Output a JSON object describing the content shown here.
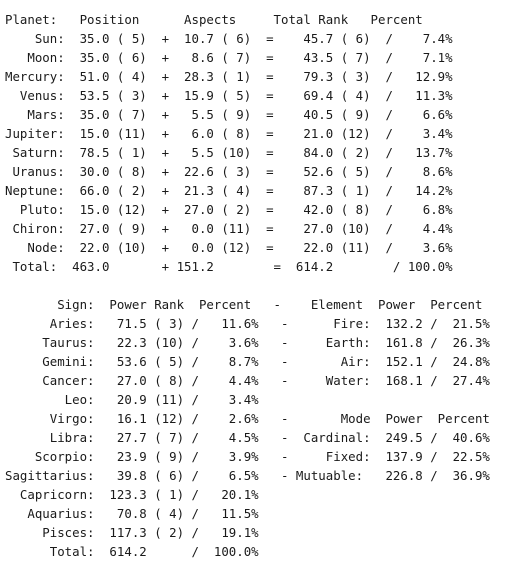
{
  "planets": {
    "header": "Planet:   Position      Aspects     Total Rank   Percent",
    "rows": [
      "    Sun:  35.0 ( 5)  +  10.7 ( 6)  =    45.7 ( 6)  /    7.4%",
      "   Moon:  35.0 ( 6)  +   8.6 ( 7)  =    43.5 ( 7)  /    7.1%",
      "Mercury:  51.0 ( 4)  +  28.3 ( 1)  =    79.3 ( 3)  /   12.9%",
      "  Venus:  53.5 ( 3)  +  15.9 ( 5)  =    69.4 ( 4)  /   11.3%",
      "   Mars:  35.0 ( 7)  +   5.5 ( 9)  =    40.5 ( 9)  /    6.6%",
      "Jupiter:  15.0 (11)  +   6.0 ( 8)  =    21.0 (12)  /    3.4%",
      " Saturn:  78.5 ( 1)  +   5.5 (10)  =    84.0 ( 2)  /   13.7%",
      " Uranus:  30.0 ( 8)  +  22.6 ( 3)  =    52.6 ( 5)  /    8.6%",
      "Neptune:  66.0 ( 2)  +  21.3 ( 4)  =    87.3 ( 1)  /   14.2%",
      "  Pluto:  15.0 (12)  +  27.0 ( 2)  =    42.0 ( 8)  /    6.8%",
      " Chiron:  27.0 ( 9)  +   0.0 (11)  =    27.0 (10)  /    4.4%",
      "   Node:  22.0 (10)  +   0.0 (12)  =    22.0 (11)  /    3.6%"
    ],
    "total": " Total:  463.0       + 151.2        =  614.2        / 100.0%"
  },
  "signs": {
    "header": "       Sign:  Power Rank  Percent   -    Element  Power  Percent",
    "rows": [
      "      Aries:   71.5 ( 3) /   11.6%   -      Fire:  132.2 /  21.5%",
      "     Taurus:   22.3 (10) /    3.6%   -     Earth:  161.8 /  26.3%",
      "     Gemini:   53.6 ( 5) /    8.7%   -       Air:  152.1 /  24.8%",
      "     Cancer:   27.0 ( 8) /    4.4%   -     Water:  168.1 /  27.4%",
      "        Leo:   20.9 (11) /    3.4%",
      "      Virgo:   16.1 (12) /    2.6%   -       Mode  Power  Percent",
      "      Libra:   27.7 ( 7) /    4.5%   -  Cardinal:  249.5 /  40.6%",
      "    Scorpio:   23.9 ( 9) /    3.9%   -     Fixed:  137.9 /  22.5%",
      "Sagittarius:   39.8 ( 6) /    6.5%   - Mutuable:   226.8 /  36.9%",
      "  Capricorn:  123.3 ( 1) /   20.1%",
      "   Aquarius:   70.8 ( 4) /   11.5%",
      "     Pisces:  117.3 ( 2) /   19.1%"
    ],
    "total": "      Total:  614.2      /  100.0%"
  }
}
